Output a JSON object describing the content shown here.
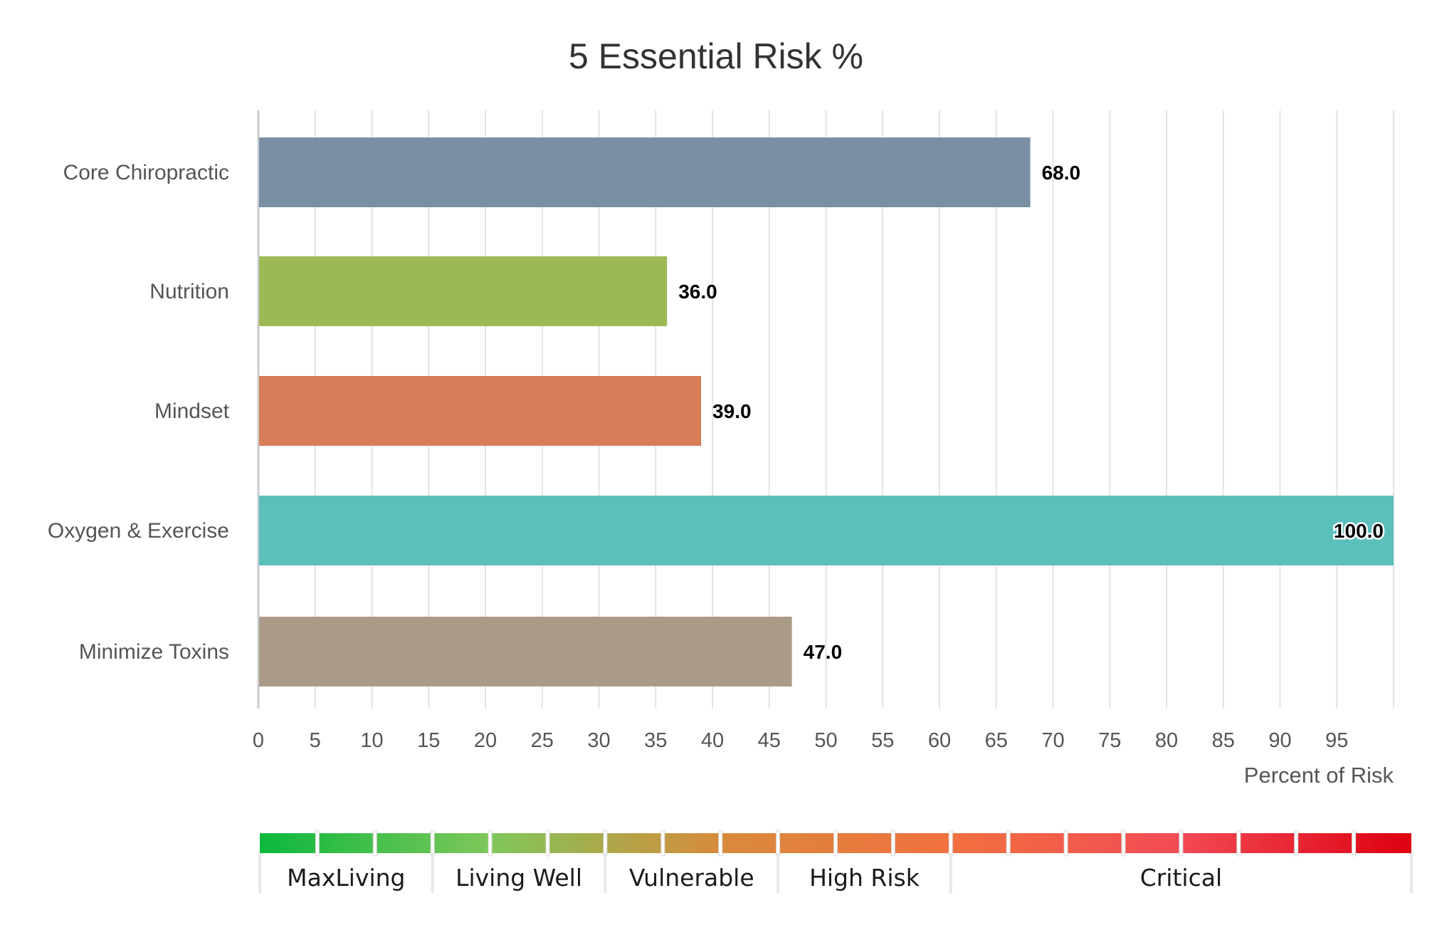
{
  "chart_data": {
    "type": "bar",
    "orientation": "horizontal",
    "title": "5 Essential Risk %",
    "xlabel": "Percent of Risk",
    "ylabel": "",
    "xlim": [
      0,
      100
    ],
    "x_ticks": [
      0,
      5,
      10,
      15,
      20,
      25,
      30,
      35,
      40,
      45,
      50,
      55,
      60,
      65,
      70,
      75,
      80,
      85,
      90,
      95
    ],
    "grid": true,
    "categories": [
      "Core Chiropractic",
      "Nutrition",
      "Mindset",
      "Oxygen & Exercise",
      "Minimize Toxins"
    ],
    "values": [
      68.0,
      36.0,
      39.0,
      100.0,
      47.0
    ],
    "value_labels": [
      "68.0",
      "36.0",
      "39.0",
      "100.0",
      "47.0"
    ],
    "colors": [
      "#7a8fa3",
      "#9db955",
      "#d77d57",
      "#5bbfbb",
      "#aa9b88"
    ]
  },
  "risk_scale": {
    "segments": [
      {
        "label": "MaxLiving",
        "from": 0,
        "to": 15
      },
      {
        "label": "Living Well",
        "from": 15,
        "to": 30
      },
      {
        "label": "Vulnerable",
        "from": 30,
        "to": 45
      },
      {
        "label": "High Risk",
        "from": 45,
        "to": 60
      },
      {
        "label": "Critical",
        "from": 60,
        "to": 100
      }
    ],
    "gradient_colors": [
      "#0cb83e",
      "#7fc75a",
      "#d88a3c",
      "#f2703f",
      "#f24a55",
      "#dd0010"
    ]
  }
}
